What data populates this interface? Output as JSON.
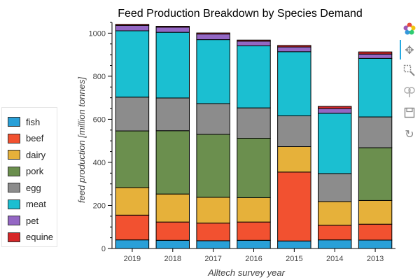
{
  "chart_data": {
    "type": "bar",
    "stacked": true,
    "title": "Feed Production Breakdown by Species Demand",
    "xlabel": "Alltech survey year",
    "ylabel": "feed production [million tonnes]",
    "ylim": [
      0,
      1050
    ],
    "yticks": [
      0,
      200,
      400,
      600,
      800,
      1000
    ],
    "categories": [
      "2019",
      "2018",
      "2017",
      "2016",
      "2015",
      "2014",
      "2013"
    ],
    "legend_position": "left",
    "series": [
      {
        "name": "fish",
        "color": "#29a0d8",
        "values": [
          40,
          38,
          36,
          38,
          35,
          40,
          39
        ]
      },
      {
        "name": "beef",
        "color": "#f25130",
        "values": [
          115,
          85,
          82,
          85,
          320,
          68,
          74
        ]
      },
      {
        "name": "dairy",
        "color": "#e6b13a",
        "values": [
          128,
          130,
          120,
          113,
          118,
          110,
          110
        ]
      },
      {
        "name": "pork",
        "color": "#6b8f4e",
        "values": [
          263,
          294,
          292,
          276,
          0,
          0,
          245
        ]
      },
      {
        "name": "egg",
        "color": "#8c8c8c",
        "values": [
          157,
          152,
          143,
          141,
          143,
          130,
          143
        ]
      },
      {
        "name": "meat",
        "color": "#1bbfd1",
        "values": [
          308,
          305,
          297,
          288,
          298,
          280,
          272
        ]
      },
      {
        "name": "pet",
        "color": "#9467c4",
        "values": [
          25,
          24,
          26,
          22,
          22,
          22,
          20
        ]
      },
      {
        "name": "equine",
        "color": "#d62728",
        "values": [
          5,
          4,
          5,
          5,
          7,
          10,
          10
        ]
      }
    ]
  },
  "toolbar": {
    "tools": [
      "bokeh-logo-icon",
      "pan-icon",
      "box-zoom-icon",
      "wheel-zoom-icon",
      "save-icon",
      "reset-icon"
    ]
  }
}
